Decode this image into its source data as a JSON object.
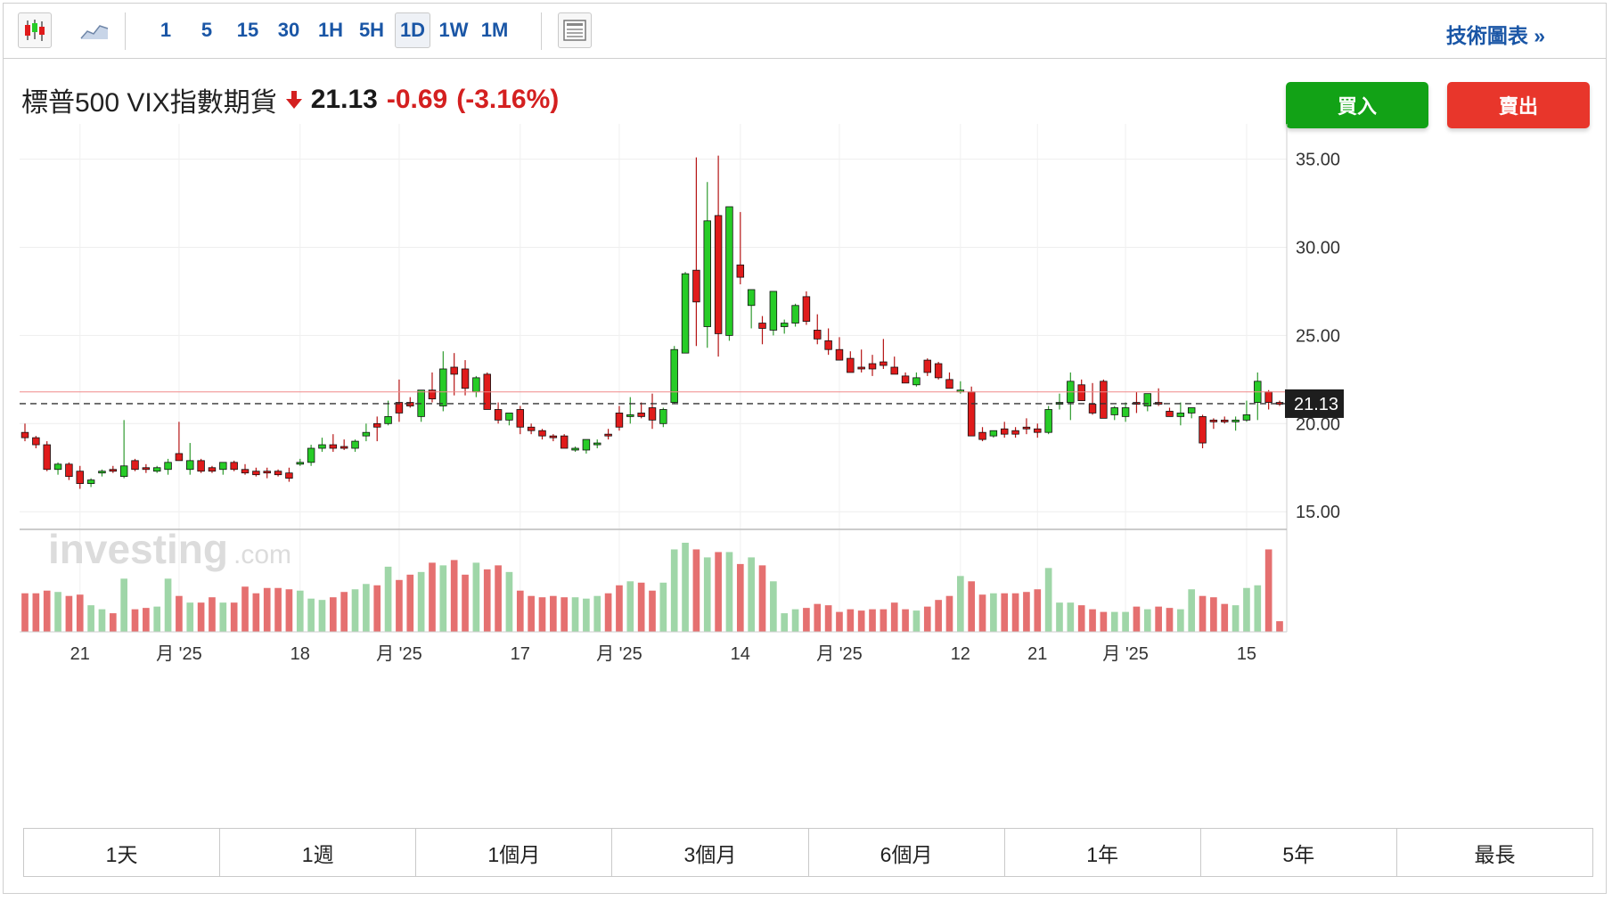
{
  "toolbar": {
    "intervals": [
      "1",
      "5",
      "15",
      "30",
      "1H",
      "5H",
      "1D",
      "1W",
      "1M"
    ],
    "active_interval": "1D",
    "tech_chart_label": "技術圖表 »"
  },
  "instrument": {
    "name": "標普500 VIX指數期貨",
    "price": "21.13",
    "change": "-0.69",
    "change_pct": "(-3.16%)",
    "direction_icon": "down-arrow-icon"
  },
  "actions": {
    "buy_label": "買入",
    "sell_label": "賣出"
  },
  "watermark": {
    "brand": "investing",
    "suffix": ".com"
  },
  "ranges": [
    "1天",
    "1週",
    "1個月",
    "3個月",
    "6個月",
    "1年",
    "5年",
    "最長"
  ],
  "colors": {
    "up": "#27cc27",
    "down": "#e01b1b",
    "vol_up": "#9fd6a8",
    "vol_down": "#e57070",
    "accent": "#1a56a6"
  },
  "chart_data": {
    "type": "candlestick",
    "ylim": [
      14.0,
      37.0
    ],
    "y_ticks": [
      15,
      20,
      25,
      30,
      35
    ],
    "y_tick_labels": [
      "15.00",
      "20.00",
      "25.00",
      "30.00",
      "35.00"
    ],
    "last_price": 21.13,
    "last_price_label": "21.13",
    "reference_line": 21.8,
    "grid": true,
    "x_labels": [
      {
        "label": "21",
        "index": 5
      },
      {
        "label": "月 '25",
        "index": 14
      },
      {
        "label": "18",
        "index": 25
      },
      {
        "label": "月 '25",
        "index": 34
      },
      {
        "label": "17",
        "index": 45
      },
      {
        "label": "月 '25",
        "index": 54
      },
      {
        "label": "14",
        "index": 65
      },
      {
        "label": "月 '25",
        "index": 74
      },
      {
        "label": "12",
        "index": 85
      },
      {
        "label": "21",
        "index": 92
      },
      {
        "label": "月 '25",
        "index": 100
      },
      {
        "label": "15",
        "index": 111
      }
    ],
    "ohlcv": [
      [
        19.5,
        20.0,
        19.0,
        19.2,
        29
      ],
      [
        19.2,
        19.3,
        18.6,
        18.8,
        29
      ],
      [
        18.8,
        19.0,
        17.3,
        17.4,
        31
      ],
      [
        17.4,
        17.8,
        17.1,
        17.7,
        30
      ],
      [
        17.7,
        17.8,
        16.8,
        17.0,
        27
      ],
      [
        17.3,
        17.6,
        16.3,
        16.6,
        28
      ],
      [
        16.6,
        16.9,
        16.4,
        16.8,
        20
      ],
      [
        17.2,
        17.4,
        17.0,
        17.3,
        17
      ],
      [
        17.4,
        17.6,
        17.2,
        17.3,
        14
      ],
      [
        17.0,
        20.2,
        16.9,
        17.6,
        40
      ],
      [
        17.9,
        18.0,
        17.3,
        17.4,
        17
      ],
      [
        17.5,
        17.7,
        17.2,
        17.4,
        18
      ],
      [
        17.3,
        17.6,
        17.2,
        17.5,
        19
      ],
      [
        17.4,
        18.0,
        17.1,
        17.8,
        40
      ],
      [
        18.3,
        20.1,
        17.9,
        17.9,
        27
      ],
      [
        17.4,
        18.9,
        17.1,
        17.9,
        22
      ],
      [
        17.9,
        18.0,
        17.2,
        17.3,
        22
      ],
      [
        17.5,
        17.6,
        17.2,
        17.3,
        26
      ],
      [
        17.4,
        17.8,
        17.1,
        17.8,
        22
      ],
      [
        17.8,
        17.9,
        17.3,
        17.4,
        22
      ],
      [
        17.4,
        17.7,
        17.1,
        17.2,
        34
      ],
      [
        17.3,
        17.5,
        17.0,
        17.1,
        29
      ],
      [
        17.3,
        17.5,
        16.9,
        17.2,
        33
      ],
      [
        17.3,
        17.4,
        17.0,
        17.1,
        33
      ],
      [
        17.2,
        17.5,
        16.7,
        16.9,
        32
      ],
      [
        17.8,
        18.0,
        17.6,
        17.8,
        31
      ],
      [
        17.8,
        18.8,
        17.6,
        18.6,
        25
      ],
      [
        18.6,
        19.2,
        18.4,
        18.8,
        24
      ],
      [
        18.8,
        19.4,
        18.4,
        18.6,
        26
      ],
      [
        18.7,
        19.1,
        18.5,
        18.6,
        30
      ],
      [
        18.6,
        19.1,
        18.4,
        19.0,
        32
      ],
      [
        19.3,
        20.0,
        19.0,
        19.5,
        36
      ],
      [
        20.0,
        20.4,
        19.0,
        19.8,
        35
      ],
      [
        20.0,
        21.3,
        19.9,
        20.4,
        49
      ],
      [
        21.2,
        22.5,
        20.1,
        20.6,
        39
      ],
      [
        21.2,
        21.5,
        20.9,
        21.0,
        43
      ],
      [
        20.4,
        21.9,
        20.1,
        21.9,
        45
      ],
      [
        21.9,
        22.9,
        21.2,
        21.4,
        52
      ],
      [
        21.0,
        24.1,
        20.7,
        23.1,
        50
      ],
      [
        23.2,
        24.0,
        21.6,
        22.8,
        54
      ],
      [
        23.1,
        23.6,
        21.6,
        22.0,
        43
      ],
      [
        21.8,
        22.7,
        21.5,
        22.6,
        52
      ],
      [
        22.8,
        22.9,
        20.9,
        20.8,
        47
      ],
      [
        20.8,
        21.2,
        20.0,
        20.2,
        50
      ],
      [
        20.2,
        20.6,
        19.9,
        20.6,
        45
      ],
      [
        20.8,
        21.0,
        19.4,
        19.8,
        31
      ],
      [
        19.8,
        20.0,
        19.4,
        19.6,
        27
      ],
      [
        19.6,
        19.7,
        19.1,
        19.3,
        26
      ],
      [
        19.3,
        19.4,
        19.0,
        19.2,
        27
      ],
      [
        19.3,
        19.4,
        18.7,
        18.6,
        26
      ],
      [
        18.5,
        18.7,
        18.4,
        18.6,
        26
      ],
      [
        18.5,
        19.0,
        18.3,
        19.1,
        25
      ],
      [
        18.9,
        19.1,
        18.6,
        18.9,
        27
      ],
      [
        19.4,
        19.7,
        19.1,
        19.3,
        29
      ],
      [
        20.6,
        21.0,
        19.6,
        19.8,
        35
      ],
      [
        20.5,
        21.5,
        20.0,
        20.5,
        38
      ],
      [
        20.6,
        21.2,
        20.3,
        20.4,
        37
      ],
      [
        20.9,
        21.7,
        19.7,
        20.2,
        31
      ],
      [
        20.0,
        20.9,
        19.8,
        20.8,
        37
      ],
      [
        21.2,
        24.4,
        21.1,
        24.2,
        62
      ],
      [
        24.0,
        28.6,
        24.0,
        28.5,
        67
      ],
      [
        28.7,
        35.1,
        24.4,
        26.9,
        62
      ],
      [
        25.5,
        33.7,
        24.3,
        31.5,
        56
      ],
      [
        31.8,
        35.2,
        23.8,
        25.1,
        60
      ],
      [
        25.0,
        32.1,
        24.7,
        32.3,
        60
      ],
      [
        29.0,
        32.0,
        27.9,
        28.3,
        51
      ],
      [
        26.7,
        27.0,
        25.4,
        27.6,
        56
      ],
      [
        25.7,
        26.1,
        24.5,
        25.4,
        50
      ],
      [
        25.3,
        26.8,
        25.0,
        27.5,
        38
      ],
      [
        25.5,
        25.9,
        25.1,
        25.7,
        14
      ],
      [
        25.7,
        26.8,
        25.5,
        26.7,
        17
      ],
      [
        27.2,
        27.5,
        25.6,
        25.8,
        18
      ],
      [
        25.3,
        26.2,
        24.5,
        24.8,
        21
      ],
      [
        24.7,
        25.4,
        23.9,
        24.2,
        20
      ],
      [
        24.2,
        24.9,
        23.9,
        23.6,
        15
      ],
      [
        23.7,
        24.1,
        23.5,
        22.9,
        17
      ],
      [
        23.2,
        24.2,
        22.9,
        23.1,
        16
      ],
      [
        23.4,
        23.9,
        22.7,
        23.1,
        17
      ],
      [
        23.5,
        24.8,
        23.1,
        23.3,
        17
      ],
      [
        23.2,
        23.8,
        23.0,
        22.8,
        22
      ],
      [
        22.7,
        22.9,
        22.4,
        22.3,
        17
      ],
      [
        22.2,
        22.9,
        22.1,
        22.6,
        16
      ],
      [
        23.6,
        23.7,
        22.7,
        22.9,
        19
      ],
      [
        23.4,
        23.5,
        22.5,
        22.6,
        24
      ],
      [
        22.5,
        22.9,
        22.1,
        22.0,
        27
      ],
      [
        21.8,
        22.4,
        21.7,
        21.9,
        42
      ],
      [
        21.8,
        22.1,
        19.4,
        19.3,
        38
      ],
      [
        19.5,
        19.8,
        19.0,
        19.1,
        28
      ],
      [
        19.3,
        19.6,
        19.2,
        19.6,
        29
      ],
      [
        19.7,
        20.1,
        19.2,
        19.4,
        29
      ],
      [
        19.6,
        19.8,
        19.2,
        19.4,
        29
      ],
      [
        19.8,
        20.3,
        19.4,
        19.7,
        30
      ],
      [
        19.7,
        20.0,
        19.2,
        19.5,
        32
      ],
      [
        19.5,
        21.0,
        19.4,
        20.8,
        48
      ],
      [
        21.1,
        21.7,
        20.8,
        21.2,
        22
      ],
      [
        21.2,
        22.9,
        20.2,
        22.4,
        22
      ],
      [
        22.2,
        22.5,
        21.4,
        21.3,
        20
      ],
      [
        21.1,
        22.3,
        20.5,
        20.6,
        17
      ],
      [
        22.4,
        22.5,
        20.5,
        20.3,
        15
      ],
      [
        20.5,
        21.0,
        20.2,
        20.9,
        15
      ],
      [
        20.4,
        21.2,
        20.1,
        20.9,
        15
      ],
      [
        21.2,
        21.8,
        20.6,
        21.1,
        19
      ],
      [
        21.0,
        21.7,
        20.7,
        21.7,
        17
      ],
      [
        21.2,
        22.0,
        21.0,
        21.1,
        19
      ],
      [
        20.7,
        20.9,
        20.4,
        20.4,
        18
      ],
      [
        20.4,
        21.2,
        19.9,
        20.6,
        17
      ],
      [
        20.6,
        20.9,
        20.3,
        20.9,
        32
      ],
      [
        20.4,
        20.5,
        18.6,
        18.9,
        27
      ],
      [
        20.2,
        20.3,
        19.7,
        20.1,
        26
      ],
      [
        20.2,
        20.4,
        20.0,
        20.1,
        21
      ],
      [
        20.2,
        20.4,
        19.6,
        20.2,
        20
      ],
      [
        20.2,
        21.3,
        20.1,
        20.5,
        33
      ],
      [
        21.2,
        22.9,
        20.2,
        22.4,
        35
      ],
      [
        21.8,
        21.9,
        20.8,
        21.2,
        62
      ],
      [
        21.2,
        21.3,
        21.0,
        21.1,
        8
      ]
    ]
  }
}
